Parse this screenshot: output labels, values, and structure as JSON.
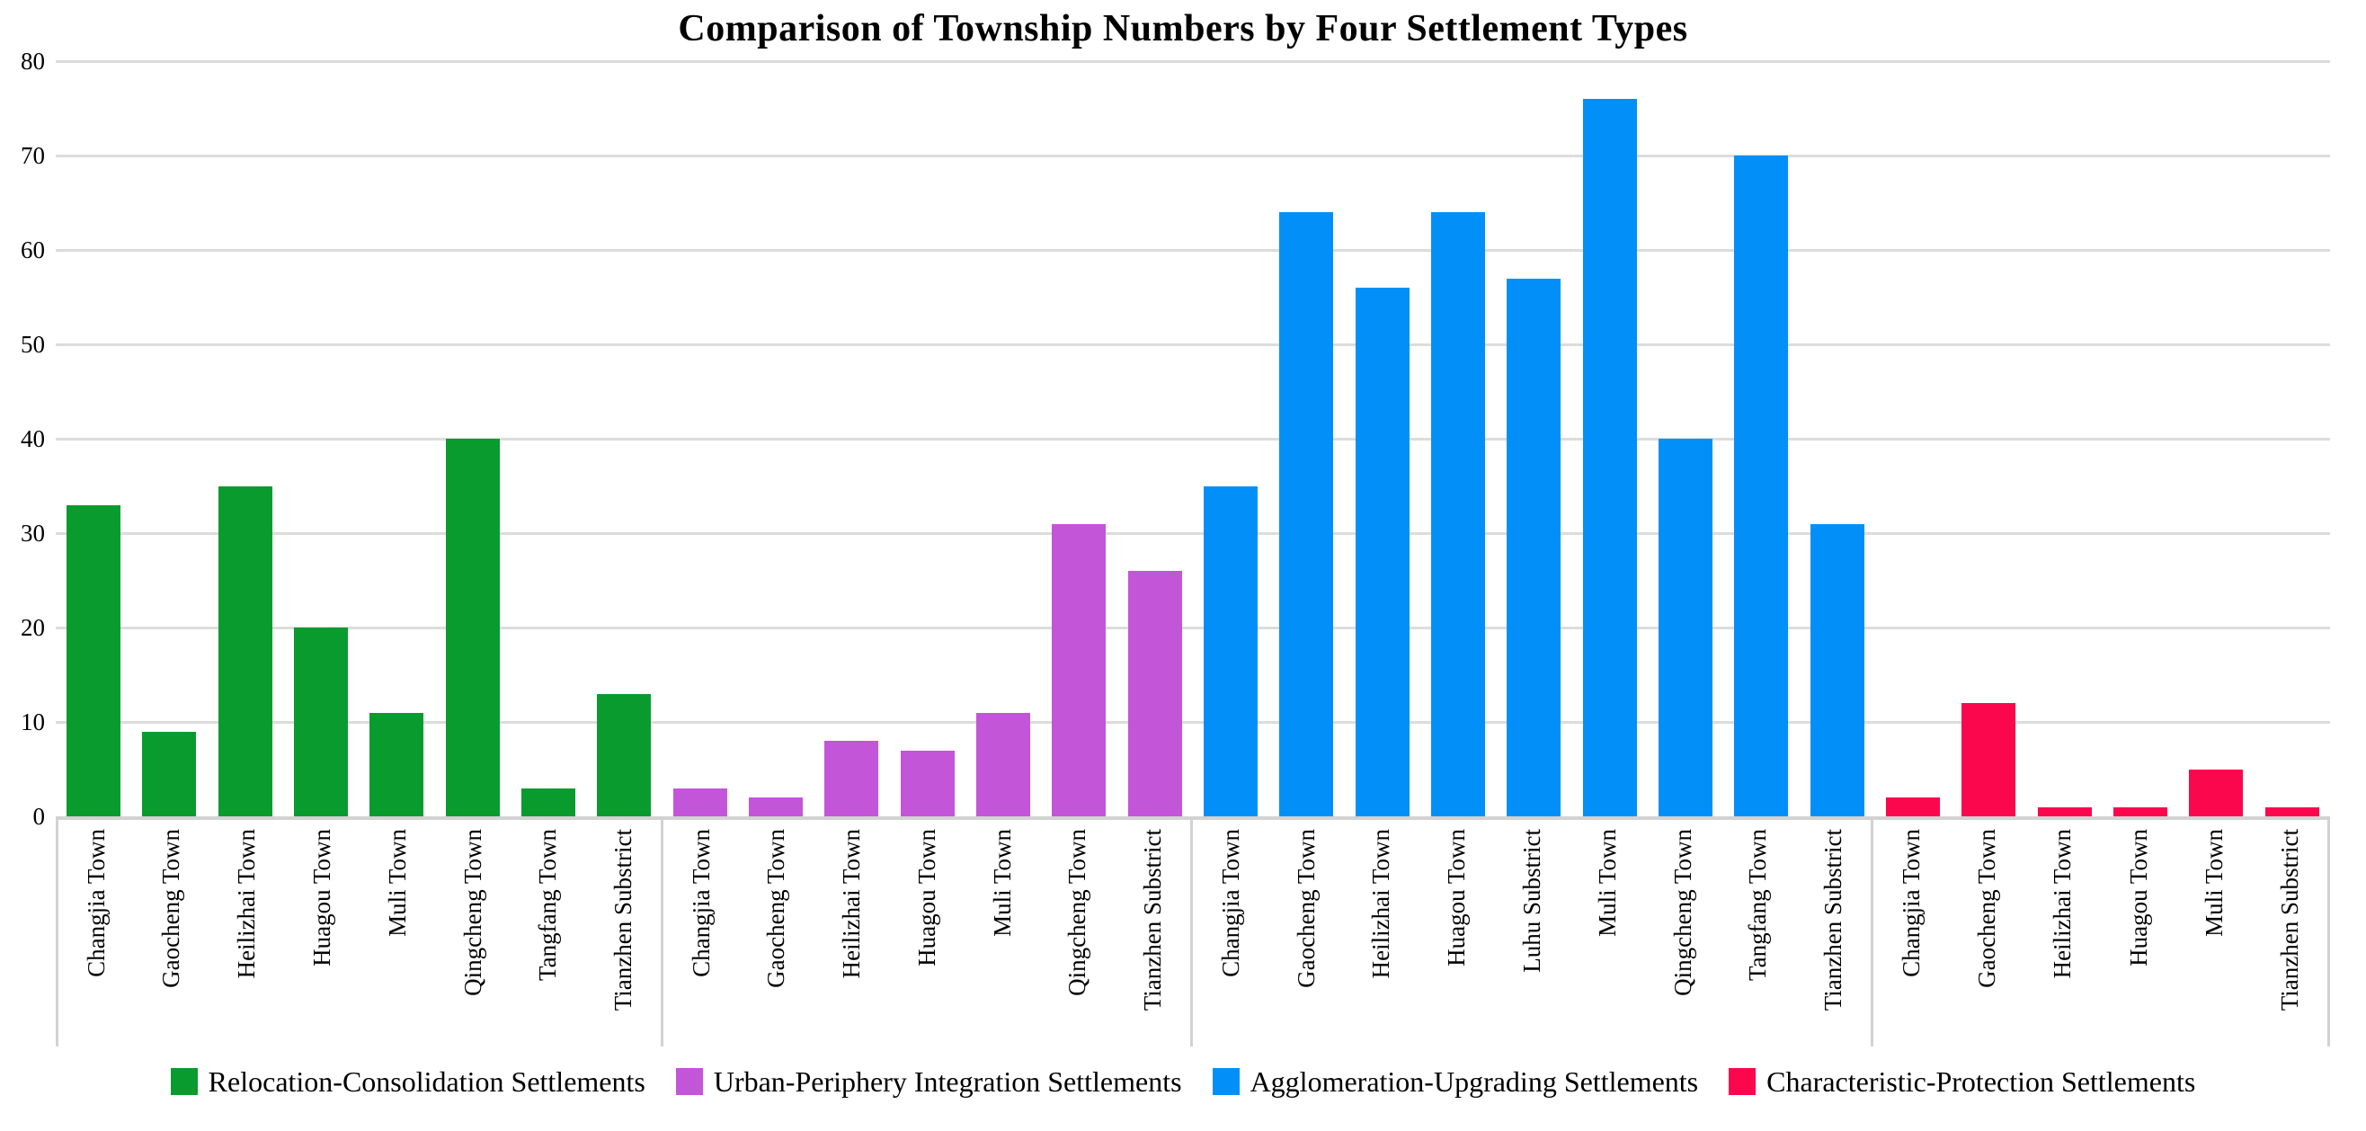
{
  "chart_data": {
    "type": "bar",
    "title": "Comparison of Township Numbers by Four Settlement Types",
    "xlabel": "",
    "ylabel": "",
    "ylim": [
      0,
      80
    ],
    "yticks": [
      0,
      10,
      20,
      30,
      40,
      50,
      60,
      70,
      80
    ],
    "grid": true,
    "legend_position": "bottom",
    "groups": [
      {
        "name": "Relocation-Consolidation Settlements",
        "color": "#0A9B2F",
        "categories": [
          "Changjia Town",
          "Gaocheng Town",
          "Heilizhai Town",
          "Huagou Town",
          "Muli Town",
          "Qingcheng Town",
          "Tangfang Town",
          "Tianzhen Substrict"
        ],
        "values": [
          33,
          9,
          35,
          20,
          11,
          40,
          3,
          13
        ]
      },
      {
        "name": "Urban-Periphery Integration Settlements",
        "color": "#C355D8",
        "categories": [
          "Changjia Town",
          "Gaocheng Town",
          "Heilizhai Town",
          "Huagou Town",
          "Muli Town",
          "Qingcheng Town",
          "Tianzhen Substrict"
        ],
        "values": [
          3,
          2,
          8,
          7,
          11,
          31,
          26
        ]
      },
      {
        "name": "Agglomeration-Upgrading Settlements",
        "color": "#0290F8",
        "categories": [
          "Changjia Town",
          "Gaocheng Town",
          "Heilizhai Town",
          "Huagou Town",
          "Luhu Substrict",
          "Muli Town",
          "Qingcheng Town",
          "Tangfang Town",
          "Tianzhen Substrict"
        ],
        "values": [
          35,
          64,
          56,
          64,
          57,
          76,
          40,
          70,
          31
        ]
      },
      {
        "name": "Characteristic-Protection Settlements",
        "color": "#FB074E",
        "categories": [
          "Changjia Town",
          "Gaocheng Town",
          "Heilizhai Town",
          "Huagou Town",
          "Muli Town",
          "Tianzhen Substrict"
        ],
        "values": [
          2,
          12,
          1,
          1,
          5,
          1
        ]
      }
    ],
    "colors": {
      "gridline": "#DCDCDC",
      "axis": "#D2D2D2",
      "background": "#FFFFFF"
    }
  }
}
